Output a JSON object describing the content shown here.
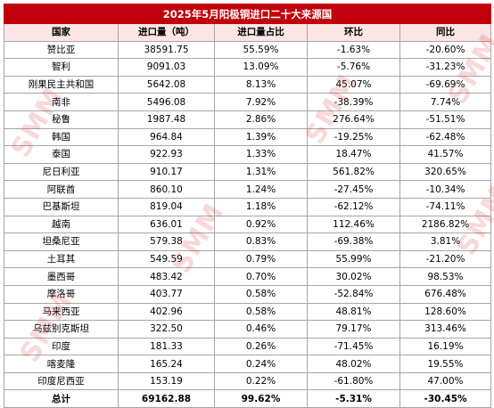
{
  "title": "2025年5月阳极铜进口二十大来源国",
  "headers": [
    "国家",
    "进口量（吨）",
    "进口量占比",
    "环比",
    "同比"
  ],
  "rows": [
    [
      "赞比亚",
      "38591.75",
      "55.59%",
      "-1.63%",
      "-20.60%"
    ],
    [
      "智利",
      "9091.03",
      "13.09%",
      "-5.76%",
      "-31.23%"
    ],
    [
      "刚果民主共和国",
      "5642.08",
      "8.13%",
      "45.07%",
      "-69.69%"
    ],
    [
      "南非",
      "5496.08",
      "7.92%",
      "-38.39%",
      "7.74%"
    ],
    [
      "秘鲁",
      "1987.48",
      "2.86%",
      "276.64%",
      "-51.51%"
    ],
    [
      "韩国",
      "964.84",
      "1.39%",
      "-19.25%",
      "-62.48%"
    ],
    [
      "泰国",
      "922.93",
      "1.33%",
      "18.47%",
      "41.57%"
    ],
    [
      "尼日利亚",
      "910.17",
      "1.31%",
      "561.82%",
      "320.65%"
    ],
    [
      "阿联酋",
      "860.10",
      "1.24%",
      "-27.45%",
      "-10.34%"
    ],
    [
      "巴基斯坦",
      "819.04",
      "1.18%",
      "-62.12%",
      "-74.11%"
    ],
    [
      "越南",
      "636.01",
      "0.92%",
      "112.46%",
      "2186.82%"
    ],
    [
      "坦桑尼亚",
      "579.38",
      "0.83%",
      "-69.38%",
      "3.81%"
    ],
    [
      "土耳其",
      "549.59",
      "0.79%",
      "55.99%",
      "-21.20%"
    ],
    [
      "墨西哥",
      "483.42",
      "0.70%",
      "30.02%",
      "98.53%"
    ],
    [
      "摩洛哥",
      "403.77",
      "0.58%",
      "-52.84%",
      "676.48%"
    ],
    [
      "马来西亚",
      "402.96",
      "0.58%",
      "48.81%",
      "128.60%"
    ],
    [
      "乌兹别克斯坦",
      "322.50",
      "0.46%",
      "79.17%",
      "313.46%"
    ],
    [
      "印度",
      "181.33",
      "0.26%",
      "-71.45%",
      "16.19%"
    ],
    [
      "喀麦隆",
      "165.24",
      "0.24%",
      "48.02%",
      "19.55%"
    ],
    [
      "印度尼西亚",
      "153.19",
      "0.22%",
      "-61.80%",
      "47.00%"
    ]
  ],
  "total": [
    "总计",
    "69162.88",
    "99.62%",
    "-5.31%",
    "-30.45%"
  ],
  "watermark": "SMM",
  "colors": {
    "title_bg": "#c0000a",
    "header_bg": "#fbe5e5",
    "watermark": "#d72828"
  }
}
